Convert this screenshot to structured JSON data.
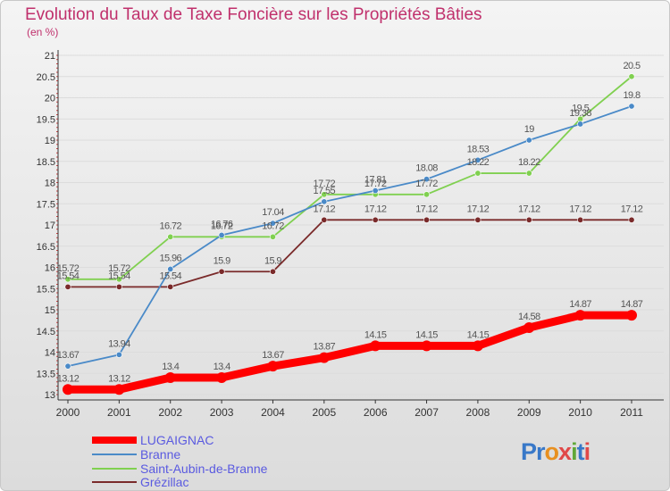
{
  "header": {
    "title": "Evolution du Taux de Taxe Foncière sur les Propriétés Bâties",
    "unit": "(en %)"
  },
  "logo": {
    "text": "Proxiti",
    "letters": [
      "P",
      "r",
      "o",
      "x",
      "i",
      "t",
      "i"
    ]
  },
  "colors": {
    "title": "#c0306c",
    "legend_text": "#5a5ae0",
    "grid": "#dcdcdc",
    "logo_letters": [
      "#3878c8",
      "#3878c8",
      "#e89020",
      "#e04848",
      "#60a838",
      "#3878c8",
      "#e04848"
    ]
  },
  "chart_data": {
    "type": "line",
    "title": "Evolution du Taux de Taxe Foncière sur les Propriétés Bâties",
    "ylabel": "(en %)",
    "xlabel": "",
    "ylim": [
      13,
      21
    ],
    "yticks": [
      "13",
      "13.5",
      "14",
      "14.5",
      "15",
      "15.5",
      "16",
      "16.5",
      "17",
      "17.5",
      "18",
      "18.5",
      "19",
      "19.5",
      "20",
      "20.5",
      "21"
    ],
    "x": [
      "2000",
      "2001",
      "2002",
      "2003",
      "2004",
      "2005",
      "2006",
      "2007",
      "2008",
      "2009",
      "2010",
      "2011"
    ],
    "grid": true,
    "legend_position": "bottom-left",
    "series": [
      {
        "name": "LUGAIGNAC",
        "color": "#ff0000",
        "values": [
          13.12,
          13.12,
          13.4,
          13.4,
          13.67,
          13.87,
          14.15,
          14.15,
          14.15,
          14.58,
          14.87,
          14.87
        ],
        "labels": [
          "13.12",
          "13.12",
          "13.4",
          "13.4",
          "13.67",
          "13.87",
          "14.15",
          "14.15",
          "14.15",
          "14.58",
          "14.87",
          "14.87"
        ]
      },
      {
        "name": "Branne",
        "color": "#4a8ac8",
        "values": [
          13.67,
          13.94,
          15.96,
          16.76,
          17.04,
          17.55,
          17.81,
          18.08,
          18.53,
          19,
          19.38,
          19.8
        ],
        "labels": [
          "13.67",
          "13.94",
          "15.96",
          "16.76",
          "17.04",
          "17.55",
          "17.81",
          "18.08",
          "18.53",
          "19",
          "19.38",
          "19.8"
        ]
      },
      {
        "name": "Saint-Aubin-de-Branne",
        "color": "#80d050",
        "values": [
          15.72,
          15.72,
          16.72,
          16.72,
          16.72,
          17.72,
          17.72,
          17.72,
          18.22,
          18.22,
          19.5,
          20.5
        ],
        "labels": [
          "15.72",
          "15.72",
          "16.72",
          "16.72",
          "16.72",
          "17.72",
          "17.72",
          "17.72",
          "18.22",
          "18.22",
          "19.5",
          "20.5"
        ]
      },
      {
        "name": "Grézillac",
        "color": "#7a2a2a",
        "values": [
          15.54,
          15.54,
          15.54,
          15.9,
          15.9,
          17.12,
          17.12,
          17.12,
          17.12,
          17.12,
          17.12,
          17.12
        ],
        "labels": [
          "15.54",
          "15.54",
          "15.54",
          "15.9",
          "15.9",
          "17.12",
          "17.12",
          "17.12",
          "17.12",
          "17.12",
          "17.12",
          "17.12"
        ]
      }
    ]
  }
}
